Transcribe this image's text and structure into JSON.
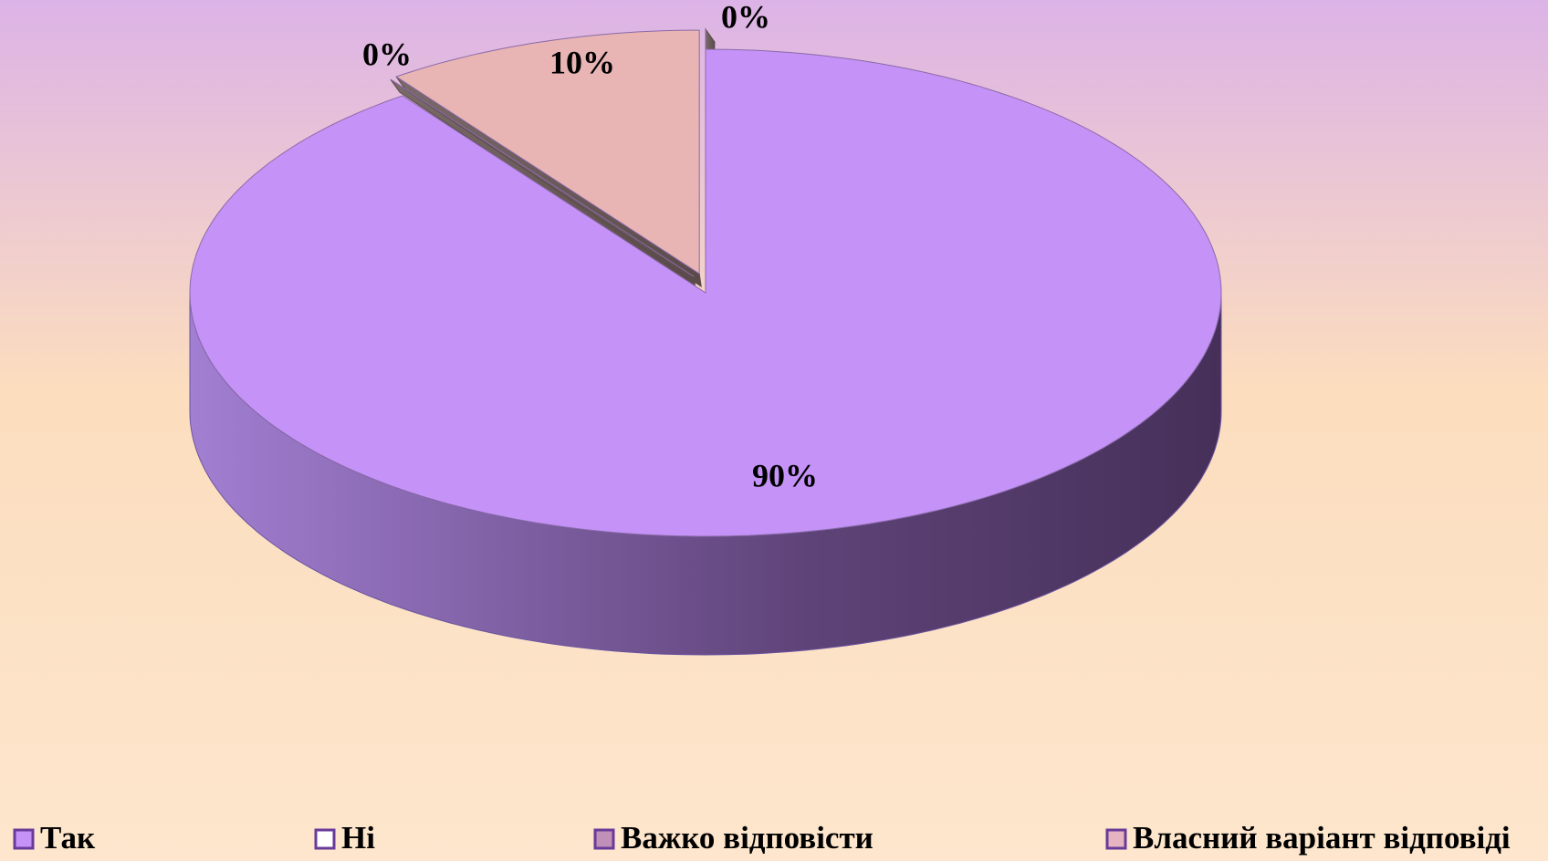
{
  "chart_data": {
    "type": "pie3d",
    "categories": [
      "Так",
      "Ні",
      "Важко відповісти",
      "Власний варіант відповіді"
    ],
    "values": [
      90,
      0,
      10,
      0
    ],
    "value_labels": [
      "90%",
      "0%",
      "10%",
      "0%"
    ],
    "colors": [
      "#c593f8",
      "#ffffff",
      "#e8b4b4",
      "#f6d2d2"
    ],
    "legend": "bottom"
  }
}
